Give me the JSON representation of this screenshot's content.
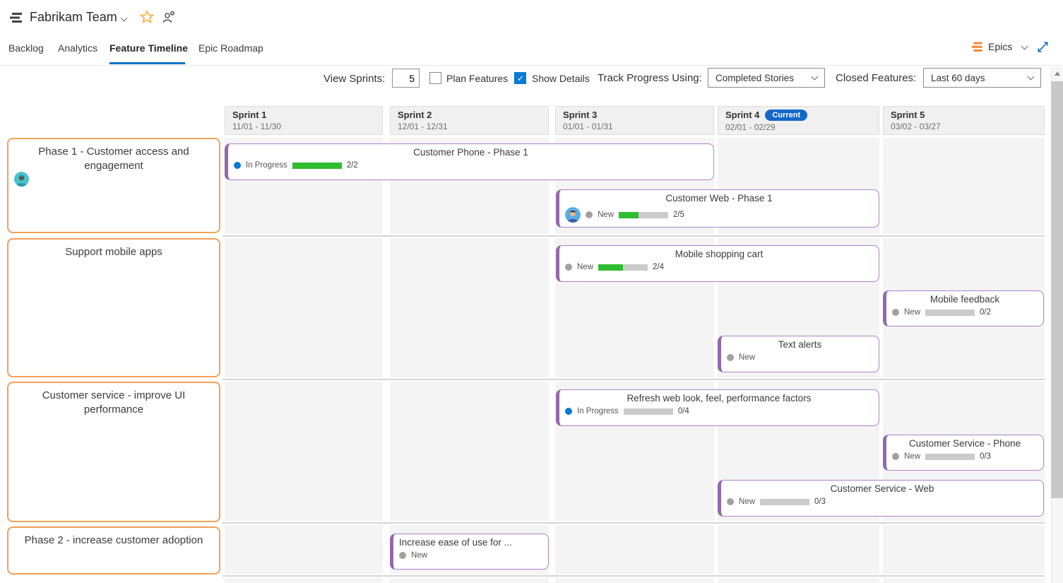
{
  "colors": {
    "accent_blue": "#1373c4",
    "epic_orange": "#f5a158",
    "feature_purple": "#9468ae",
    "progress_green": "#2ebd2e",
    "current_badge_blue": "#1467c8",
    "checked_checkbox_blue": "#0b7bd4"
  },
  "icons": {
    "team_backlog": "stacked-bars",
    "favorite": "star-outline",
    "team_members": "person-add",
    "epics_view": "orange-stacked-bars",
    "expand": "diagonal-resize-arrows"
  },
  "header": {
    "team_name": "Fabrikam Team",
    "tabs": [
      {
        "label": "Backlog",
        "active": false
      },
      {
        "label": "Analytics",
        "active": false
      },
      {
        "label": "Feature Timeline",
        "active": true
      },
      {
        "label": "Epic Roadmap",
        "active": false
      }
    ],
    "view_selector_label": "Epics"
  },
  "toolbar": {
    "view_sprints_label": "View Sprints:",
    "view_sprints_value": "5",
    "plan_features_label": "Plan Features",
    "plan_features_checked": false,
    "show_details_label": "Show Details",
    "show_details_checked": true,
    "track_progress_label": "Track Progress Using:",
    "track_progress_value": "Completed Stories",
    "closed_features_label": "Closed Features:",
    "closed_features_value": "Last 60 days"
  },
  "sprints": [
    {
      "name": "Sprint 1",
      "dates": "11/01 - 11/30"
    },
    {
      "name": "Sprint 2",
      "dates": "12/01 - 12/31"
    },
    {
      "name": "Sprint 3",
      "dates": "01/01 - 01/31"
    },
    {
      "name": "Sprint 4",
      "dates": "02/01 - 02/29",
      "badge": "Current"
    },
    {
      "name": "Sprint 5",
      "dates": "03/02 - 03/27"
    }
  ],
  "epics": [
    {
      "title": "Phase 1 - Customer access and engagement",
      "has_avatar": true
    },
    {
      "title": "Support mobile apps",
      "has_avatar": false
    },
    {
      "title": "Customer service - improve UI performance",
      "has_avatar": false
    },
    {
      "title": "Phase 2 - increase customer adoption",
      "has_avatar": false
    }
  ],
  "features": [
    {
      "title": "Customer Phone - Phase 1",
      "status": "In Progress",
      "progress": "2/2",
      "completed": 2,
      "total": 2,
      "pct": 100,
      "sprints": "1-3",
      "epic": "Phase 1 - Customer access and engagement"
    },
    {
      "title": "Customer Web - Phase 1",
      "status": "New",
      "progress": "2/5",
      "completed": 2,
      "total": 5,
      "pct": 40,
      "has_avatar": true,
      "sprints": "3-4",
      "epic": "Phase 1 - Customer access and engagement"
    },
    {
      "title": "Mobile shopping cart",
      "status": "New",
      "progress": "2/4",
      "completed": 2,
      "total": 4,
      "pct": 50,
      "sprints": "3-4",
      "epic": "Support mobile apps"
    },
    {
      "title": "Mobile feedback",
      "status": "New",
      "progress": "0/2",
      "completed": 0,
      "total": 2,
      "pct": 0,
      "sprints": "5",
      "epic": "Support mobile apps"
    },
    {
      "title": "Text alerts",
      "status": "New",
      "sprints": "4",
      "epic": "Support mobile apps"
    },
    {
      "title": "Refresh web look, feel, performance factors",
      "status": "In Progress",
      "progress": "0/4",
      "completed": 0,
      "total": 4,
      "pct": 0,
      "sprints": "3-4",
      "epic": "Customer service - improve UI performance"
    },
    {
      "title": "Customer Service - Phone",
      "status": "New",
      "progress": "0/3",
      "completed": 0,
      "total": 3,
      "pct": 0,
      "sprints": "5",
      "epic": "Customer service - improve UI performance"
    },
    {
      "title": "Customer Service - Web",
      "status": "New",
      "progress": "0/3",
      "completed": 0,
      "total": 3,
      "pct": 0,
      "sprints": "4-5",
      "epic": "Customer service - improve UI performance"
    },
    {
      "title": "Increase ease of use for ...",
      "status": "New",
      "sprints": "2",
      "epic": "Phase 2 - increase customer adoption"
    }
  ]
}
